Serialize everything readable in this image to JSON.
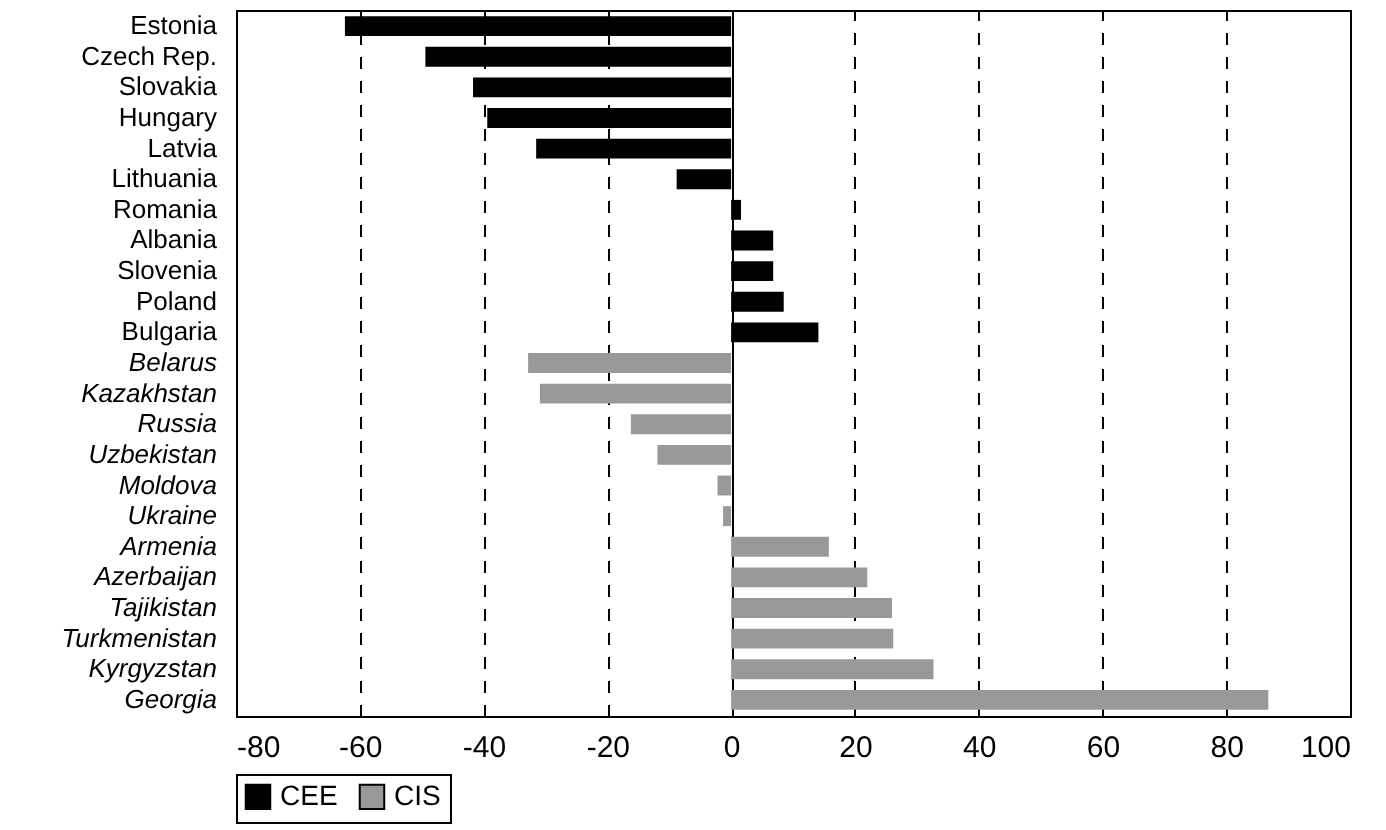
{
  "chart_data": {
    "type": "bar",
    "orientation": "horizontal",
    "categories": [
      "Estonia",
      "Czech Rep.",
      "Slovakia",
      "Hungary",
      "Latvia",
      "Lithuania",
      "Romania",
      "Albania",
      "Slovenia",
      "Poland",
      "Bulgaria",
      "Belarus",
      "Kazakhstan",
      "Russia",
      "Uzbekistan",
      "Moldova",
      "Ukraine",
      "Armenia",
      "Azerbaijan",
      "Tajikistan",
      "Turkmenistan",
      "Kyrgyzstan",
      "Georgia"
    ],
    "series": [
      {
        "name": "CEE",
        "color": "#000000",
        "values": [
          -62.4,
          -49.4,
          -41.7,
          -39.4,
          -31.5,
          -8.8,
          1.6,
          6.8,
          6.8,
          8.5,
          14.1,
          null,
          null,
          null,
          null,
          null,
          null,
          null,
          null,
          null,
          null,
          null,
          null
        ]
      },
      {
        "name": "CIS",
        "color": "#999999",
        "values": [
          null,
          null,
          null,
          null,
          null,
          null,
          null,
          null,
          null,
          null,
          null,
          -32.8,
          -30.9,
          -16.2,
          -11.9,
          -2.2,
          -1.3,
          15.8,
          22,
          26,
          26.2,
          32.7,
          86.8
        ]
      }
    ],
    "xlim": [
      -80,
      100
    ],
    "xticks": [
      -80,
      -60,
      -40,
      -20,
      0,
      20,
      40,
      60,
      80,
      100
    ],
    "grid": "x",
    "legend": "bottom"
  }
}
